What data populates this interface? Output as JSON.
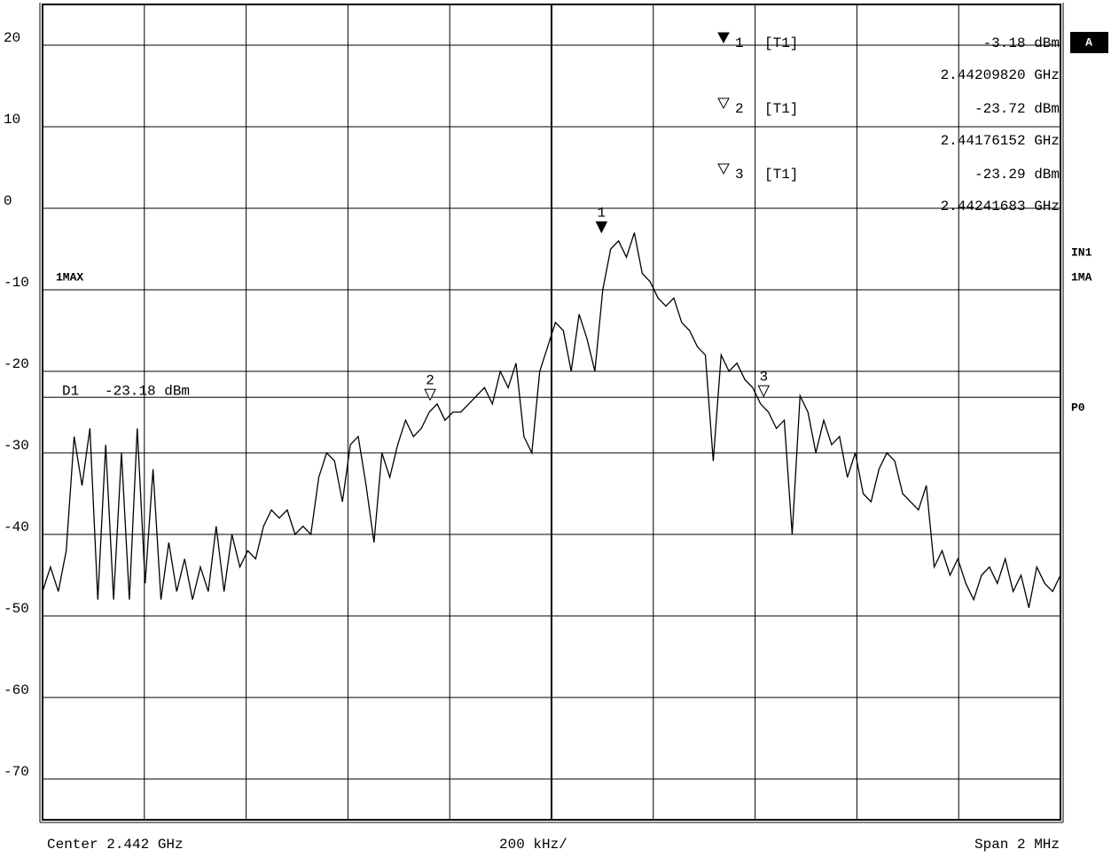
{
  "chart_data": {
    "type": "line",
    "color": "#000000",
    "values": [
      -47,
      -44,
      -47,
      -42,
      -28,
      -34,
      -27,
      -48,
      -29,
      -48,
      -30,
      -48,
      -27,
      -46,
      -32,
      -48,
      -41,
      -47,
      -43,
      -48,
      -44,
      -47,
      -39,
      -47,
      -40,
      -44,
      -42,
      -43,
      -39,
      -37,
      -38,
      -37,
      -40,
      -39,
      -40,
      -33,
      -30,
      -31,
      -36,
      -29,
      -28,
      -34,
      -41,
      -30,
      -33,
      -29,
      -26,
      -28,
      -27,
      -25,
      -24,
      -26,
      -25,
      -25,
      -24,
      -23,
      -22,
      -24,
      -20,
      -22,
      -19,
      -28,
      -30,
      -20,
      -17,
      -14,
      -15,
      -20,
      -13,
      -16,
      -20,
      -10,
      -5,
      -4,
      -6,
      -3,
      -8,
      -9,
      -11,
      -12,
      -11,
      -14,
      -15,
      -17,
      -18,
      -31,
      -18,
      -20,
      -19,
      -21,
      -22,
      -24,
      -25,
      -27,
      -26,
      -40,
      -23,
      -25,
      -30,
      -26,
      -29,
      -28,
      -33,
      -30,
      -35,
      -36,
      -32,
      -30,
      -31,
      -35,
      -36,
      -37,
      -34,
      -44,
      -42,
      -45,
      -43,
      -46,
      -48,
      -45,
      -44,
      -46,
      -43,
      -47,
      -45,
      -49,
      -44,
      -46,
      -47,
      -45
    ],
    "xlim": [
      2.441,
      2.443
    ],
    "ylim": [
      -75,
      25
    ],
    "yticks": [
      -70,
      -60,
      -50,
      -40,
      -30,
      -20,
      -10,
      0,
      10,
      20
    ],
    "x_divisions": 10,
    "grid": true,
    "trace_label": "1MAX",
    "center_label": "Center 2.442 GHz",
    "scale_label": "200 kHz/",
    "span_label": "Span 2 MHz",
    "display_line": {
      "name": "D1",
      "value": -23.18,
      "value_label": "-23.18 dBm"
    },
    "markers": [
      {
        "id": "1",
        "trace": "[T1]",
        "filled": true,
        "level": -3.18,
        "level_label": "-3.18 dBm",
        "freq": 2.4420982,
        "freq_label": "2.44209820 GHz"
      },
      {
        "id": "2",
        "trace": "[T1]",
        "filled": false,
        "level": -23.72,
        "level_label": "-23.72 dBm",
        "freq": 2.44176152,
        "freq_label": "2.44176152 GHz"
      },
      {
        "id": "3",
        "trace": "[T1]",
        "filled": false,
        "level": -23.29,
        "level_label": "-23.29 dBm",
        "freq": 2.44241683,
        "freq_label": "2.44241683 GHz"
      }
    ],
    "side_labels": [
      "A",
      "IN1",
      "1MA",
      "P0"
    ]
  }
}
